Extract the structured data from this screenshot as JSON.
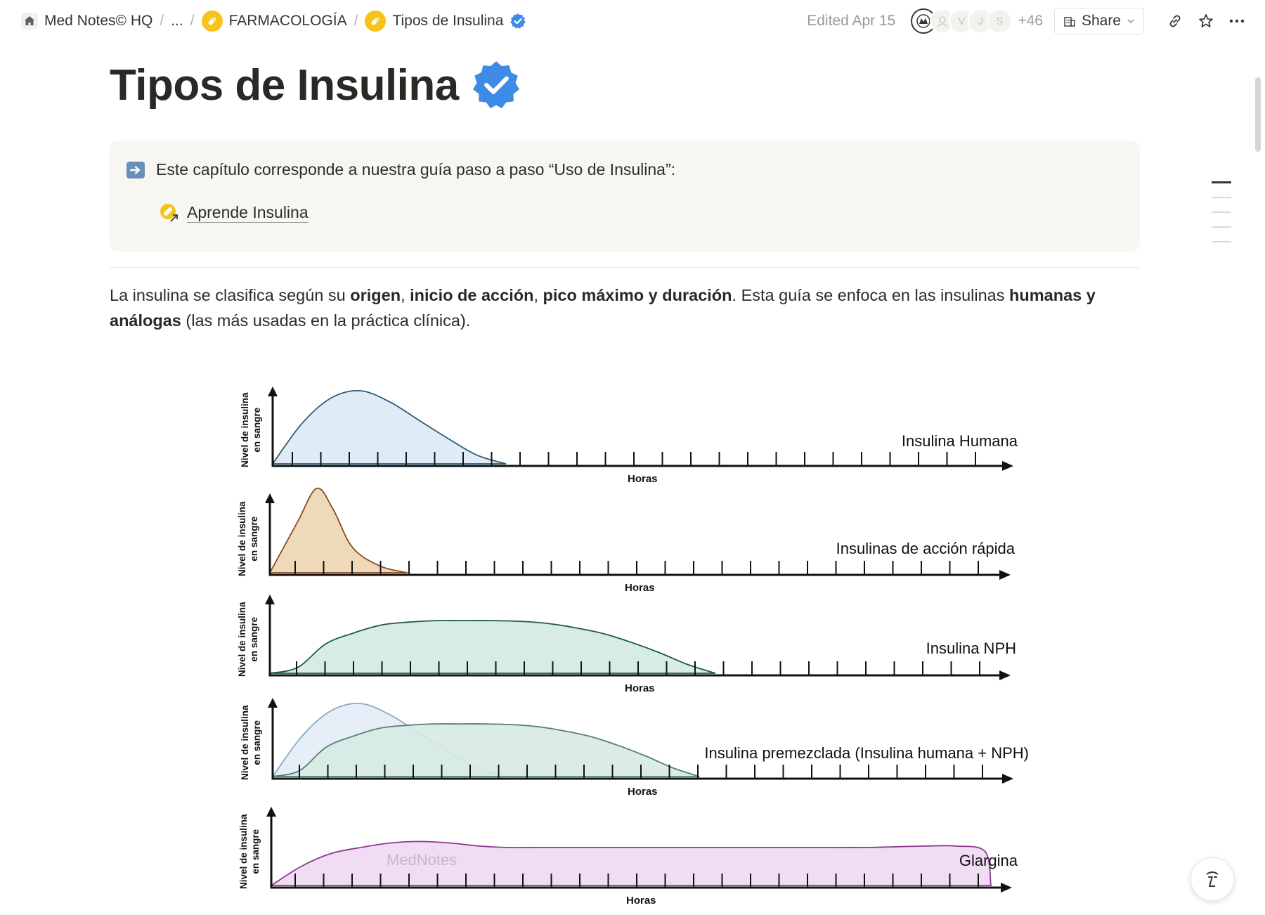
{
  "breadcrumb": {
    "items": [
      {
        "label": "Med Notes© HQ",
        "icon": "home-icon"
      },
      {
        "label": "...",
        "icon": ""
      },
      {
        "label": "FARMACOLOGÍA",
        "icon": "pill-icon"
      },
      {
        "label": "Tipos de Insulina",
        "icon": "pill-icon"
      }
    ],
    "separator": "/"
  },
  "topbar": {
    "edited": "Edited Apr 15",
    "avatars": [
      "",
      "",
      "V",
      "J",
      "S"
    ],
    "more_count": "+46",
    "share_label": "Share"
  },
  "page": {
    "title": "Tipos de Insulina",
    "callout": {
      "text": "Este capítulo corresponde a nuestra guía paso a paso “Uso de Insulina”:",
      "link_label": "Aprende Insulina"
    },
    "paragraph": {
      "p1": "La insulina se clasifica según su ",
      "b1": "origen",
      "p2": ", ",
      "b2": "inicio de acción",
      "p3": ", ",
      "b3": "pico máximo y duración",
      "p4": ". Esta guía se enfoca en las insulinas ",
      "b4": "humanas y análogas",
      "p5": " (las más usadas en la práctica clínica)."
    }
  },
  "chart_data": {
    "type": "area",
    "x_axis_label": "Horas",
    "y_axis_label_line1": "Nivel de insulina",
    "y_axis_label_line2": "en sangre",
    "watermark": "MedNotes",
    "panels": [
      {
        "label": "Insulina Humana",
        "series": [
          {
            "color": "#dce9f6",
            "stroke": "#2f5a78",
            "x": [
              0,
              1,
              2,
              3,
              4,
              5,
              6,
              7,
              8
            ],
            "y": [
              0,
              0.55,
              0.9,
              1.0,
              0.85,
              0.6,
              0.35,
              0.12,
              0
            ]
          }
        ]
      },
      {
        "label": "Insulinas de acción rápida",
        "series": [
          {
            "color": "#ecd5b4",
            "stroke": "#8a4b1e",
            "x": [
              0,
              1,
              1.7,
              2.3,
              3,
              4,
              5
            ],
            "y": [
              0,
              0.6,
              1.0,
              0.75,
              0.3,
              0.08,
              0
            ]
          }
        ]
      },
      {
        "label": "Insulina NPH",
        "series": [
          {
            "color": "#d3ebe1",
            "stroke": "#1f5a43",
            "x": [
              0,
              1,
              2,
              3,
              4,
              5,
              6,
              7,
              8,
              9,
              10,
              11,
              12,
              13,
              14,
              15,
              16
            ],
            "y": [
              0,
              0.08,
              0.4,
              0.55,
              0.66,
              0.7,
              0.72,
              0.72,
              0.72,
              0.71,
              0.68,
              0.62,
              0.54,
              0.42,
              0.28,
              0.12,
              0
            ]
          }
        ]
      },
      {
        "label": "Insulina premezclada (Insulina humana + NPH)",
        "series": [
          {
            "color": "#e3ecf6",
            "stroke": "#8aa9bf",
            "x": [
              0,
              1,
              2,
              3,
              4,
              5,
              6,
              7,
              8
            ],
            "y": [
              0,
              0.55,
              0.9,
              1.0,
              0.85,
              0.6,
              0.35,
              0.12,
              0
            ]
          },
          {
            "color": "#d7eae3",
            "stroke": "#557f71",
            "x": [
              0,
              1,
              2,
              3,
              4,
              5,
              6,
              7,
              8,
              9,
              10,
              11,
              12,
              13,
              14,
              15,
              16
            ],
            "y": [
              0,
              0.08,
              0.4,
              0.55,
              0.66,
              0.7,
              0.72,
              0.72,
              0.72,
              0.71,
              0.68,
              0.62,
              0.54,
              0.42,
              0.28,
              0.12,
              0
            ]
          }
        ]
      },
      {
        "label": "Glargina",
        "series": [
          {
            "color": "#f0d9f2",
            "stroke": "#8a3a8f",
            "x": [
              0,
              1,
              2,
              3,
              4,
              5,
              6,
              7,
              8,
              9,
              10,
              11,
              12,
              13,
              14,
              15,
              16,
              17,
              18,
              19,
              20,
              21,
              22,
              23,
              24,
              24.2
            ],
            "y": [
              0,
              0.25,
              0.42,
              0.5,
              0.56,
              0.58,
              0.56,
              0.52,
              0.5,
              0.5,
              0.5,
              0.5,
              0.5,
              0.5,
              0.5,
              0.5,
              0.5,
              0.5,
              0.5,
              0.5,
              0.5,
              0.51,
              0.52,
              0.52,
              0.45,
              0
            ]
          }
        ]
      }
    ]
  }
}
